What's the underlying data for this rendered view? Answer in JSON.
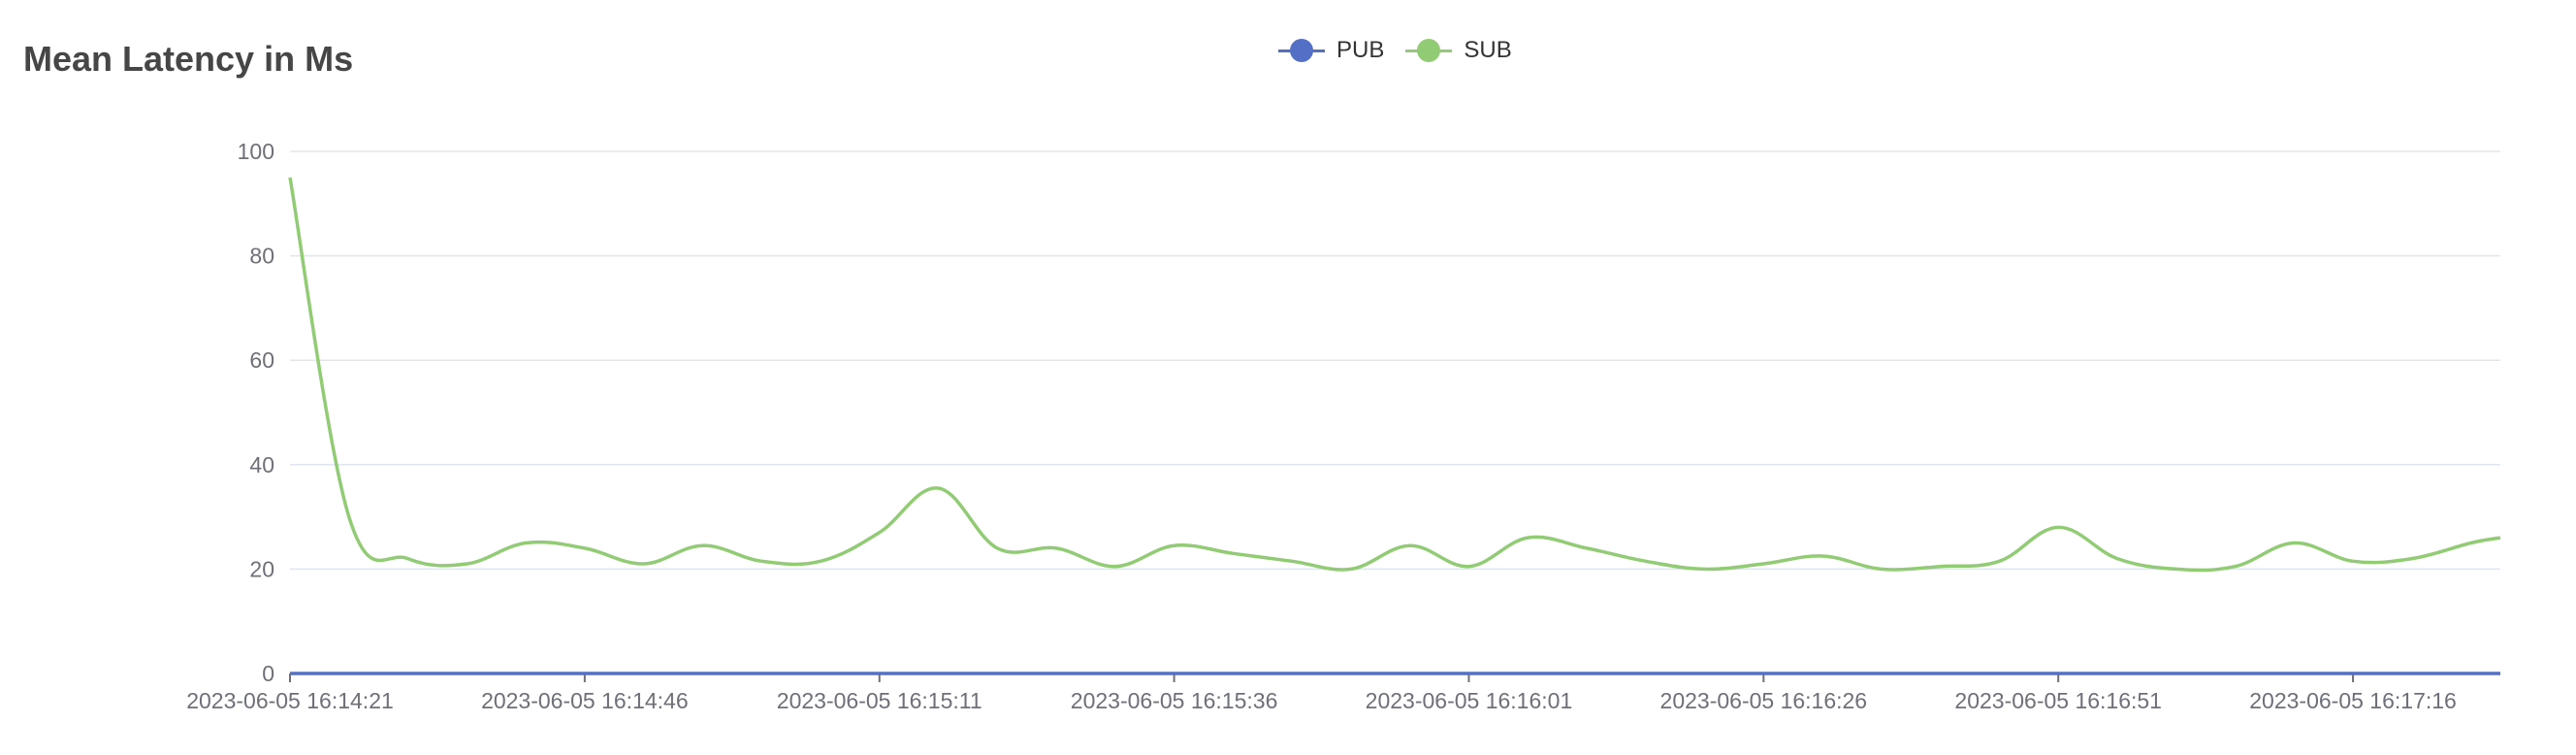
{
  "chart_data": {
    "type": "line",
    "title": "Mean Latency in Ms",
    "xlabel": "",
    "ylabel": "",
    "ylim": [
      0,
      100
    ],
    "yticks": [
      0,
      20,
      40,
      60,
      80,
      100
    ],
    "x_tick_labels": [
      "2023-06-05 16:14:21",
      "2023-06-05 16:14:46",
      "2023-06-05 16:15:11",
      "2023-06-05 16:15:36",
      "2023-06-05 16:16:01",
      "2023-06-05 16:16:26",
      "2023-06-05 16:16:51",
      "2023-06-05 16:17:16"
    ],
    "grid": true,
    "legend_position": "top-center",
    "series": [
      {
        "name": "PUB",
        "color": "#5470c6",
        "x": [
          0,
          75
        ],
        "values": [
          0,
          0
        ]
      },
      {
        "name": "SUB",
        "color": "#91cc75",
        "x": [
          0,
          2,
          4,
          6,
          8,
          10,
          12,
          14,
          16,
          18,
          20,
          22,
          24,
          26,
          28,
          30,
          32,
          34,
          36,
          38,
          40,
          42,
          44,
          46,
          48,
          50,
          52,
          54,
          56,
          58,
          60,
          62,
          64,
          66,
          68,
          70,
          72,
          74,
          75
        ],
        "values": [
          95,
          30,
          22,
          21,
          25,
          24,
          21,
          24.5,
          21.5,
          21.5,
          27,
          35.5,
          24,
          24,
          20.5,
          24.5,
          23,
          21.5,
          20,
          24.5,
          20.5,
          26,
          24,
          21.5,
          20,
          21,
          22.5,
          20,
          20.5,
          21.5,
          28,
          22,
          20,
          20.5,
          25,
          21.5,
          22,
          25,
          26
        ]
      }
    ]
  },
  "legend": {
    "pub_label": "PUB",
    "sub_label": "SUB"
  }
}
